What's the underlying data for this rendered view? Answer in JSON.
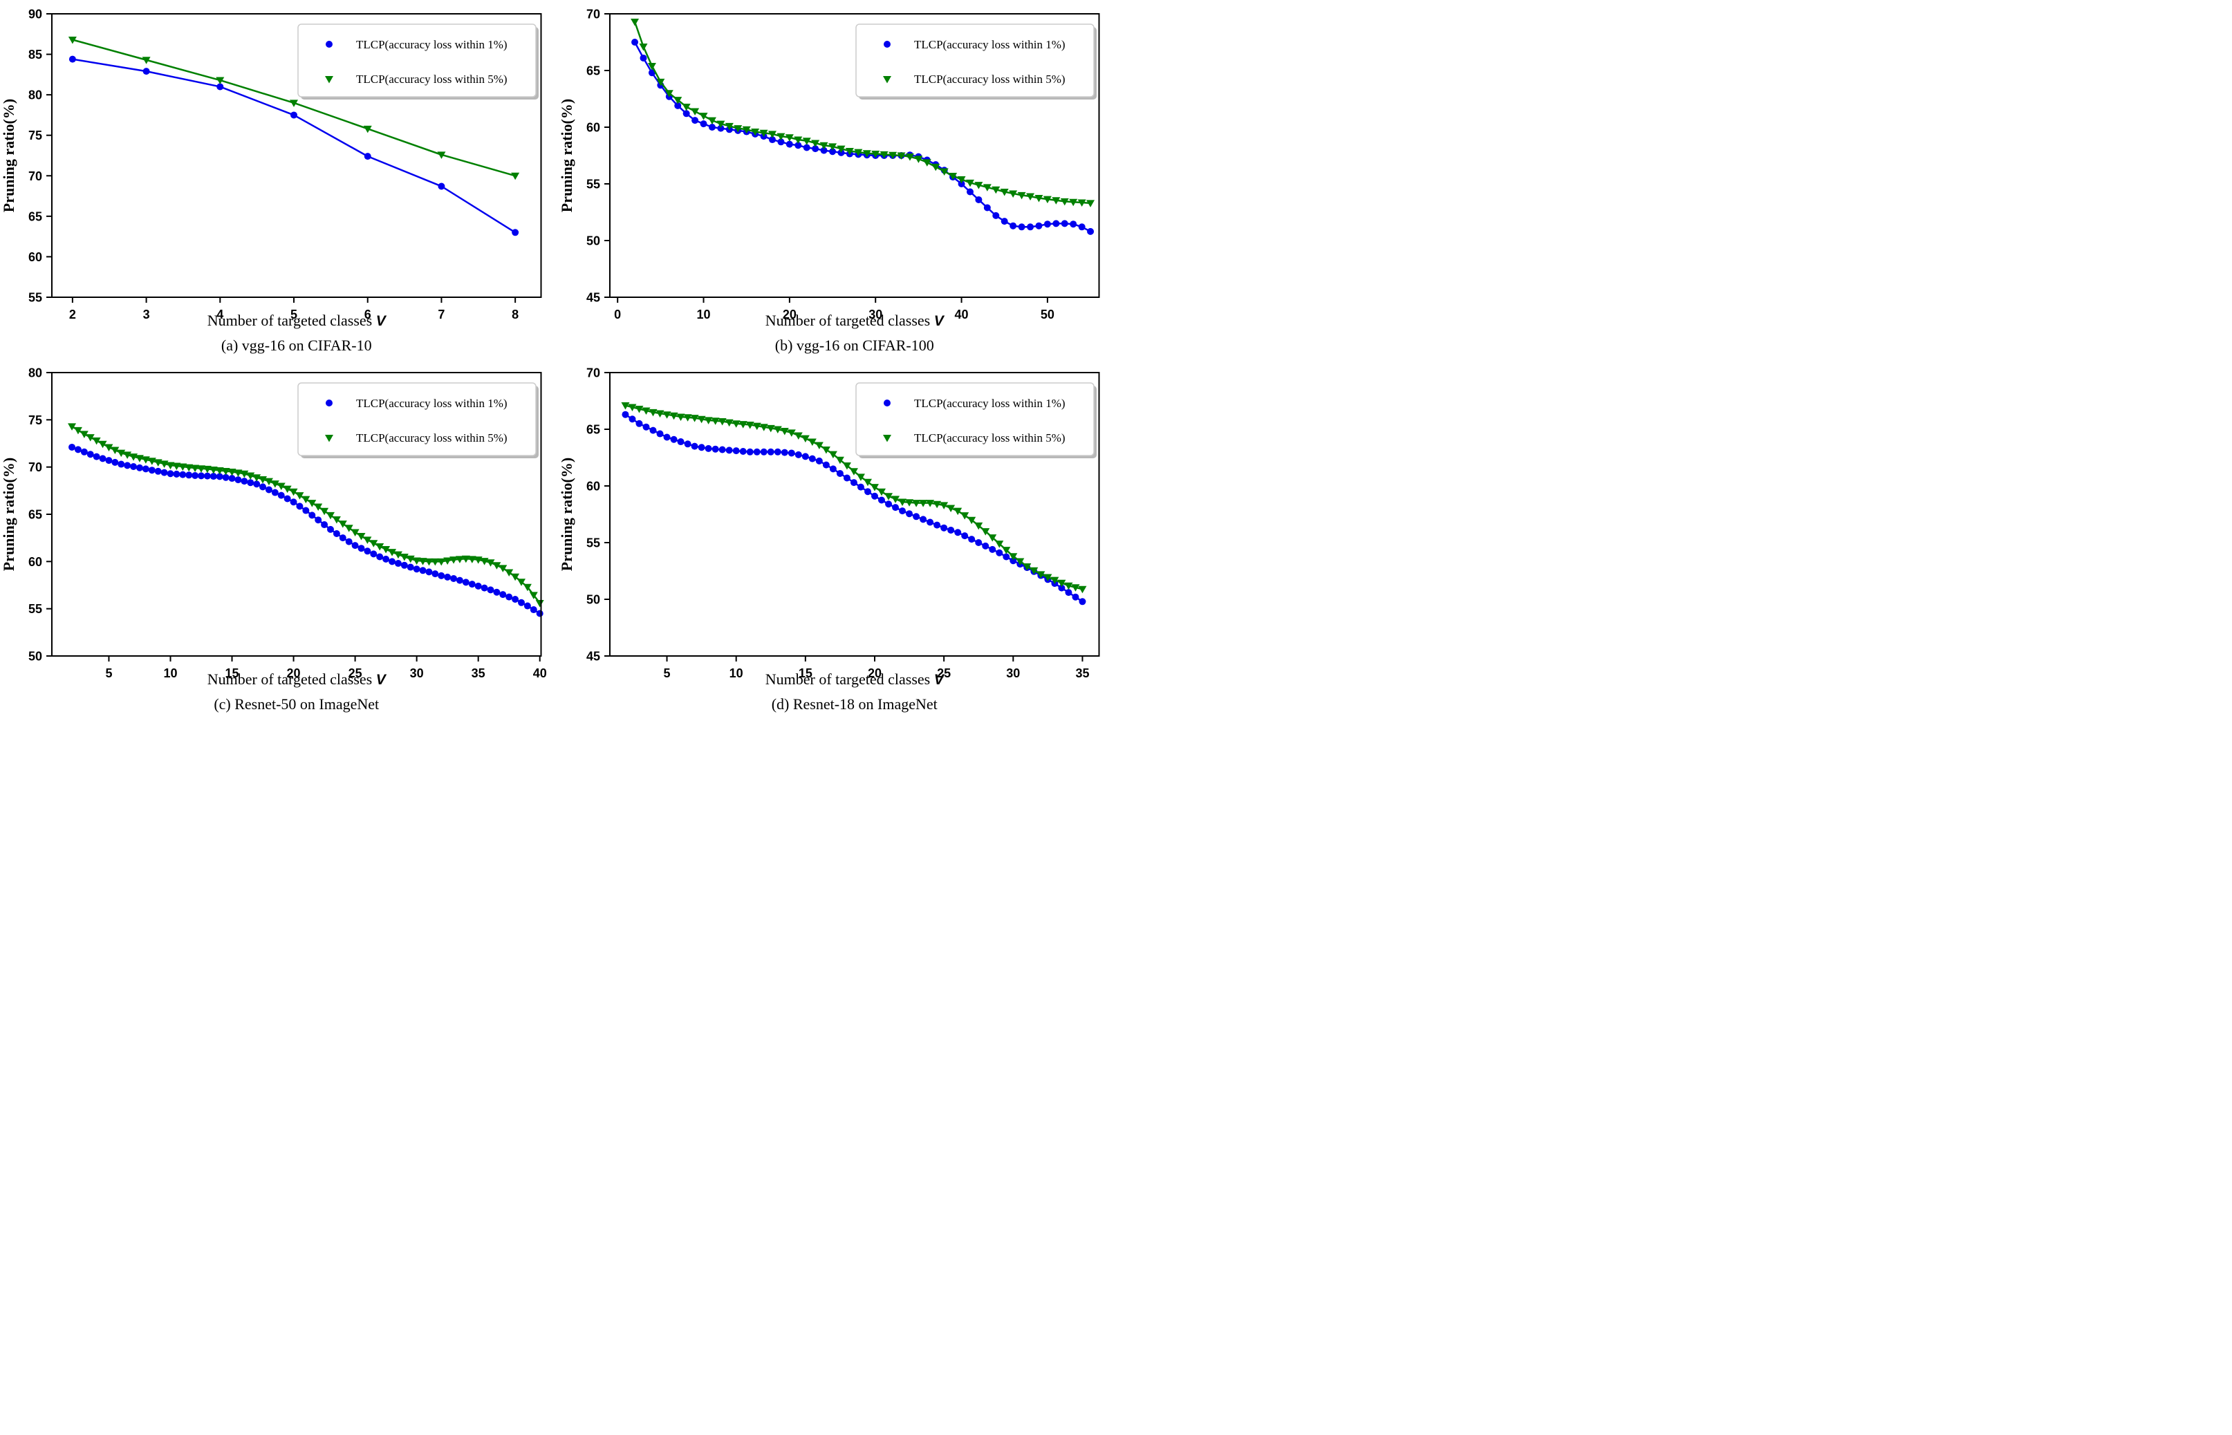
{
  "figure": {
    "ylabel": "Pruning ratio(%)",
    "xlabel": "Number of targeted classes",
    "xlabel_italic_suffix": "V",
    "background": "#ffffff",
    "axis_color": "#000000"
  },
  "legend_entries": [
    {
      "label": "TLCP(accuracy loss within 1%)",
      "color": "#0000EE",
      "marker": "circle"
    },
    {
      "label": "TLCP(accuracy loss within 5%)",
      "color": "#008000",
      "marker": "triangle-down"
    }
  ],
  "chart_data": [
    {
      "type": "line",
      "caption": "(a) vgg-16 on CIFAR-10",
      "xlim": [
        1.72,
        8.35
      ],
      "ylim": [
        55,
        90
      ],
      "xticks": [
        2,
        3,
        4,
        5,
        6,
        7,
        8
      ],
      "yticks": [
        55,
        60,
        65,
        70,
        75,
        80,
        85,
        90
      ],
      "x": {
        "start": 2,
        "step": 1
      },
      "series": [
        {
          "legend": 0,
          "y": [
            84.4,
            82.9,
            81.0,
            77.5,
            72.4,
            68.7,
            63.0
          ]
        },
        {
          "legend": 1,
          "y": [
            86.8,
            84.3,
            81.8,
            79.0,
            75.8,
            72.6,
            70.0
          ]
        }
      ]
    },
    {
      "type": "line",
      "caption": "(b) vgg-16 on CIFAR-100",
      "xlim": [
        -0.9,
        56
      ],
      "ylim": [
        45,
        70
      ],
      "xticks": [
        0,
        10,
        20,
        30,
        40,
        50
      ],
      "yticks": [
        45,
        50,
        55,
        60,
        65,
        70
      ],
      "x": {
        "start": 2,
        "step": 1
      },
      "series": [
        {
          "legend": 0,
          "y": [
            67.5,
            66.1,
            64.8,
            63.7,
            62.7,
            61.9,
            61.2,
            60.6,
            60.3,
            60.0,
            59.9,
            59.8,
            59.7,
            59.6,
            59.4,
            59.2,
            58.9,
            58.7,
            58.5,
            58.4,
            58.2,
            58.1,
            57.95,
            57.85,
            57.75,
            57.65,
            57.6,
            57.55,
            57.5,
            57.5,
            57.5,
            57.5,
            57.55,
            57.4,
            57.1,
            56.7,
            56.2,
            55.6,
            55.0,
            54.3,
            53.6,
            52.9,
            52.2,
            51.7,
            51.3,
            51.2,
            51.2,
            51.3,
            51.45,
            51.5,
            51.5,
            51.45,
            51.2,
            50.8
          ]
        },
        {
          "legend": 1,
          "y": [
            69.3,
            67.1,
            65.4,
            64.0,
            63.0,
            62.4,
            61.8,
            61.4,
            61.0,
            60.6,
            60.3,
            60.1,
            59.9,
            59.8,
            59.6,
            59.5,
            59.4,
            59.2,
            59.1,
            58.9,
            58.8,
            58.6,
            58.4,
            58.3,
            58.1,
            57.9,
            57.8,
            57.7,
            57.65,
            57.6,
            57.55,
            57.5,
            57.4,
            57.2,
            56.9,
            56.5,
            56.1,
            55.7,
            55.4,
            55.1,
            54.9,
            54.7,
            54.5,
            54.3,
            54.15,
            54.0,
            53.9,
            53.75,
            53.65,
            53.55,
            53.45,
            53.4,
            53.35,
            53.3
          ]
        }
      ]
    },
    {
      "type": "line",
      "caption": "(c) Resnet-50 on ImageNet",
      "xlim": [
        0.37,
        40.1
      ],
      "ylim": [
        50,
        80
      ],
      "xticks": [
        5,
        10,
        15,
        20,
        25,
        30,
        35,
        40
      ],
      "yticks": [
        50,
        55,
        60,
        65,
        70,
        75,
        80
      ],
      "x": {
        "start": 2,
        "step": 0.5
      },
      "series": [
        {
          "legend": 0,
          "y": [
            72.1,
            71.85,
            71.6,
            71.35,
            71.1,
            70.9,
            70.7,
            70.5,
            70.3,
            70.17,
            70.05,
            69.92,
            69.8,
            69.67,
            69.55,
            69.42,
            69.3,
            69.25,
            69.2,
            69.15,
            69.1,
            69.07,
            69.05,
            69.02,
            69.0,
            68.9,
            68.8,
            68.65,
            68.5,
            68.35,
            68.2,
            67.9,
            67.6,
            67.3,
            67.0,
            66.65,
            66.3,
            65.85,
            65.4,
            64.9,
            64.4,
            63.9,
            63.4,
            62.95,
            62.5,
            62.1,
            61.7,
            61.4,
            61.1,
            60.8,
            60.5,
            60.25,
            60.0,
            59.8,
            59.6,
            59.4,
            59.2,
            59.05,
            58.9,
            58.7,
            58.5,
            58.35,
            58.2,
            58.0,
            57.8,
            57.6,
            57.4,
            57.2,
            57.0,
            56.75,
            56.5,
            56.25,
            56.0,
            55.65,
            55.3,
            54.9,
            54.5
          ]
        },
        {
          "legend": 1,
          "y": [
            74.3,
            73.9,
            73.5,
            73.15,
            72.8,
            72.45,
            72.1,
            71.8,
            71.5,
            71.3,
            71.1,
            70.95,
            70.8,
            70.65,
            70.5,
            70.35,
            70.2,
            70.12,
            70.05,
            69.97,
            69.9,
            69.85,
            69.8,
            69.72,
            69.65,
            69.57,
            69.5,
            69.4,
            69.3,
            69.1,
            68.9,
            68.7,
            68.5,
            68.25,
            68.0,
            67.7,
            67.4,
            67.0,
            66.6,
            66.2,
            65.8,
            65.35,
            64.9,
            64.45,
            64.0,
            63.55,
            63.1,
            62.7,
            62.3,
            61.95,
            61.6,
            61.3,
            61.0,
            60.75,
            60.5,
            60.3,
            60.1,
            60.05,
            60.0,
            60.0,
            60.0,
            60.1,
            60.2,
            60.25,
            60.3,
            60.25,
            60.2,
            60.05,
            59.9,
            59.6,
            59.3,
            58.85,
            58.4,
            57.85,
            57.3,
            56.45,
            55.6
          ]
        }
      ]
    },
    {
      "type": "line",
      "caption": "(d) Resnet-18 on ImageNet",
      "xlim": [
        0.88,
        36.2
      ],
      "ylim": [
        45,
        70
      ],
      "xticks": [
        5,
        10,
        15,
        20,
        25,
        30,
        35
      ],
      "yticks": [
        45,
        50,
        55,
        60,
        65,
        70
      ],
      "x": {
        "start": 2,
        "step": 0.5
      },
      "series": [
        {
          "legend": 0,
          "y": [
            66.3,
            65.9,
            65.5,
            65.2,
            64.9,
            64.6,
            64.3,
            64.1,
            63.9,
            63.7,
            63.5,
            63.4,
            63.3,
            63.25,
            63.2,
            63.15,
            63.1,
            63.05,
            63.0,
            63.0,
            63.0,
            63.0,
            63.0,
            62.95,
            62.9,
            62.75,
            62.6,
            62.4,
            62.2,
            61.85,
            61.5,
            61.1,
            60.7,
            60.3,
            59.9,
            59.5,
            59.1,
            58.75,
            58.4,
            58.1,
            57.8,
            57.55,
            57.3,
            57.05,
            56.8,
            56.55,
            56.3,
            56.1,
            55.9,
            55.6,
            55.3,
            55.0,
            54.7,
            54.4,
            54.1,
            53.75,
            53.4,
            53.1,
            52.8,
            52.45,
            52.1,
            51.75,
            51.4,
            51.0,
            50.6,
            50.2,
            49.8
          ]
        },
        {
          "legend": 1,
          "y": [
            67.1,
            66.95,
            66.8,
            66.65,
            66.5,
            66.4,
            66.3,
            66.2,
            66.1,
            66.05,
            66.0,
            65.9,
            65.8,
            65.75,
            65.7,
            65.6,
            65.5,
            65.45,
            65.4,
            65.3,
            65.2,
            65.1,
            65.0,
            64.85,
            64.7,
            64.45,
            64.2,
            63.9,
            63.6,
            63.2,
            62.8,
            62.3,
            61.8,
            61.3,
            60.8,
            60.35,
            59.9,
            59.5,
            59.1,
            58.85,
            58.6,
            58.55,
            58.5,
            58.5,
            58.5,
            58.4,
            58.3,
            58.05,
            57.8,
            57.4,
            57.0,
            56.5,
            56.0,
            55.45,
            54.9,
            54.35,
            53.8,
            53.35,
            52.9,
            52.55,
            52.2,
            51.95,
            51.7,
            51.45,
            51.2,
            51.05,
            50.9
          ]
        }
      ]
    }
  ]
}
